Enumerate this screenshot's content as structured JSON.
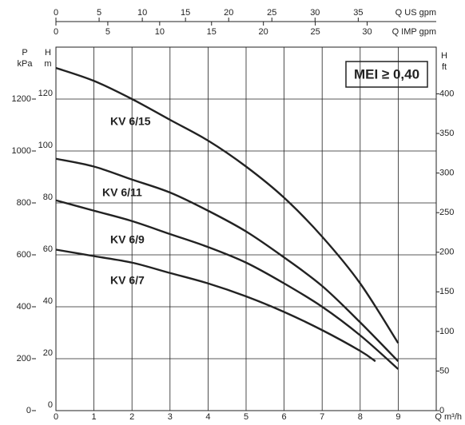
{
  "chart_data": {
    "type": "line",
    "xlim": [
      0,
      10
    ],
    "xticks": [
      0,
      1,
      2,
      3,
      4,
      5,
      6,
      7,
      8,
      9
    ],
    "ylim": [
      0,
      140
    ],
    "yticks": [
      0,
      20,
      40,
      60,
      80,
      100,
      120
    ],
    "p_lim": [
      0,
      1400
    ],
    "p_ticks": [
      0,
      200,
      400,
      600,
      800,
      1000,
      1200
    ],
    "ft_lim": [
      0,
      459
    ],
    "ft_ticks": [
      0,
      50,
      100,
      150,
      200,
      250,
      300,
      350,
      400
    ],
    "us_gpm_lim": [
      0,
      44.03
    ],
    "us_gpm_ticks": [
      0,
      5,
      10,
      15,
      20,
      25,
      30,
      35
    ],
    "imp_gpm_lim": [
      0,
      36.66
    ],
    "imp_gpm_ticks": [
      0,
      5,
      10,
      15,
      20,
      25,
      30
    ],
    "x_label": "Q m³/h",
    "us_gpm_label": "Q US gpm",
    "imp_gpm_label": "Q IMP gpm",
    "p_label_symbol": "P",
    "p_label_unit": "kPa",
    "y_label_symbol": "H",
    "y_label_unit": "m",
    "ft_label_symbol": "H",
    "ft_label_unit": "ft",
    "annotation": "MEI ≥ 0,40",
    "grid": true,
    "series": [
      {
        "name": "KV 6/15",
        "color": "#222222",
        "x": [
          0,
          1,
          2,
          3,
          4,
          5,
          6,
          7,
          8,
          9
        ],
        "values": [
          132,
          127,
          120,
          112,
          104,
          94,
          82,
          67,
          49,
          26
        ]
      },
      {
        "name": "KV 6/11",
        "color": "#222222",
        "x": [
          0,
          1,
          2,
          3,
          4,
          5,
          6,
          7,
          8,
          9
        ],
        "values": [
          97,
          94,
          89,
          84,
          77,
          69,
          59,
          48,
          34,
          19
        ]
      },
      {
        "name": "KV 6/9",
        "color": "#222222",
        "x": [
          0,
          1,
          2,
          3,
          4,
          5,
          6,
          7,
          8,
          9
        ],
        "values": [
          81,
          77,
          73,
          68,
          63,
          57,
          49,
          40,
          29,
          16
        ]
      },
      {
        "name": "KV 6/7",
        "color": "#222222",
        "x": [
          0,
          1,
          2,
          3,
          4,
          5,
          6,
          7,
          8,
          8.4
        ],
        "values": [
          62,
          59.5,
          57,
          53,
          49,
          44,
          38,
          31,
          23,
          19
        ]
      }
    ]
  }
}
